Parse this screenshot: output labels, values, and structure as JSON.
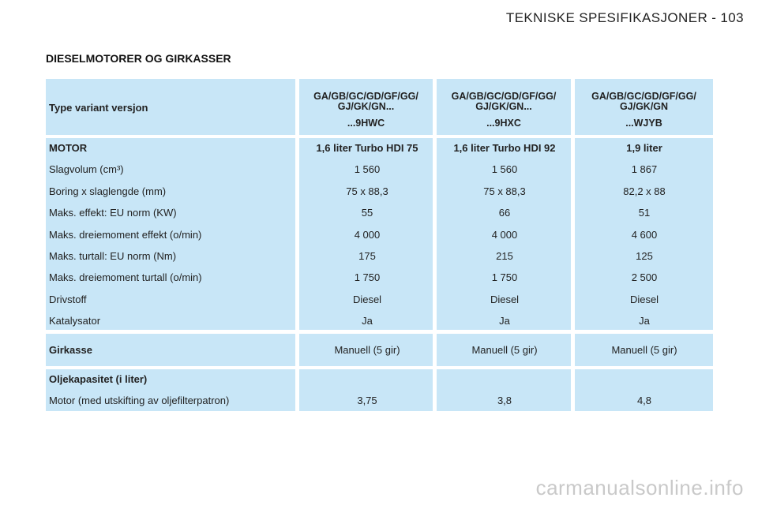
{
  "page_header": "TEKNISKE SPESIFIKASJONER - 103",
  "section_title": "DIESELMOTORER OG GIRKASSER",
  "header": {
    "label": "Type variant versjon",
    "columns": [
      {
        "line1": "GA/GB/GC/GD/GF/GG/",
        "line2": "GJ/GK/GN...",
        "code": "...9HWC"
      },
      {
        "line1": "GA/GB/GC/GD/GF/GG/",
        "line2": "GJ/GK/GN...",
        "code": "...9HXC"
      },
      {
        "line1": "GA/GB/GC/GD/GF/GG/",
        "line2": "GJ/GK/GN",
        "code": "...WJYB"
      }
    ]
  },
  "motor": {
    "rows": [
      {
        "label": "MOTOR",
        "values": [
          "1,6 liter Turbo HDI 75",
          "1,6 liter Turbo HDI 92",
          "1,9 liter"
        ]
      },
      {
        "label": "Slagvolum (cm³)",
        "values": [
          "1 560",
          "1 560",
          "1 867"
        ]
      },
      {
        "label": "Boring x slaglengde (mm)",
        "values": [
          "75 x 88,3",
          "75 x 88,3",
          "82,2 x 88"
        ]
      },
      {
        "label": "Maks. effekt: EU norm (KW)",
        "values": [
          "55",
          "66",
          "51"
        ]
      },
      {
        "label": "Maks. dreiemoment effekt (o/min)",
        "values": [
          "4 000",
          "4 000",
          "4 600"
        ]
      },
      {
        "label": "Maks. turtall: EU norm (Nm)",
        "values": [
          "175",
          "215",
          "125"
        ]
      },
      {
        "label": "Maks. dreiemoment turtall (o/min)",
        "values": [
          "1 750",
          "1 750",
          "2 500"
        ]
      },
      {
        "label": "Drivstoff",
        "values": [
          "Diesel",
          "Diesel",
          "Diesel"
        ]
      },
      {
        "label": "Katalysator",
        "values": [
          "Ja",
          "Ja",
          "Ja"
        ]
      }
    ]
  },
  "gearbox": {
    "label": "Girkasse",
    "values": [
      "Manuell (5 gir)",
      "Manuell (5 gir)",
      "Manuell (5 gir)"
    ]
  },
  "oil": {
    "title": "Oljekapasitet (i liter)",
    "label": "Motor (med utskifting av oljefilterpatron)",
    "values": [
      "3,75",
      "3,8",
      "4,8"
    ]
  },
  "watermark": "carmanualsonline.info"
}
